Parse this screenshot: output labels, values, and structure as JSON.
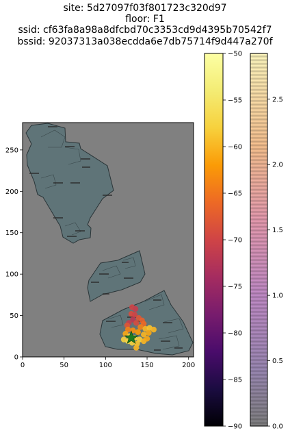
{
  "title": {
    "site": "site: 5d27097f03f801723c320d97",
    "floor": "floor: F1",
    "ssid": "ssid: cf63fa8a98a8dfcbd70c3353cd9d4395b70542f7",
    "bssid": "bssid: 92037313a038ecdda6e7db75714f9d447a270f"
  },
  "colors": {
    "map_background": "#808080",
    "building_fill": "#5f7478",
    "building_edge": "#2a3538",
    "waypoint_marker": "#1f7a1f"
  },
  "chart_data": [
    {
      "type": "scatter",
      "description_role": "main floor map with RSSI scatter overlaid on a density heatmap",
      "xlim": [
        0,
        206
      ],
      "ylim": [
        0,
        283
      ],
      "x_ticks": [
        "0",
        "50",
        "100",
        "150",
        "200"
      ],
      "y_ticks": [
        "0",
        "50",
        "100",
        "150",
        "200",
        "250"
      ],
      "grid": false,
      "points": [
        {
          "x": 132,
          "y": 60,
          "rssi": -70
        },
        {
          "x": 136,
          "y": 58,
          "rssi": -71
        },
        {
          "x": 131,
          "y": 52,
          "rssi": -69
        },
        {
          "x": 135,
          "y": 51,
          "rssi": -70
        },
        {
          "x": 140,
          "y": 47,
          "rssi": -68
        },
        {
          "x": 144,
          "y": 44,
          "rssi": -67
        },
        {
          "x": 146,
          "y": 40,
          "rssi": -66
        },
        {
          "x": 133,
          "y": 45,
          "rssi": -72
        },
        {
          "x": 128,
          "y": 41,
          "rssi": -71
        },
        {
          "x": 126,
          "y": 38,
          "rssi": -68
        },
        {
          "x": 137,
          "y": 41,
          "rssi": -69
        },
        {
          "x": 142,
          "y": 36,
          "rssi": -64
        },
        {
          "x": 148,
          "y": 34,
          "rssi": -60
        },
        {
          "x": 153,
          "y": 35,
          "rssi": -59
        },
        {
          "x": 158,
          "y": 33,
          "rssi": -60
        },
        {
          "x": 152,
          "y": 29,
          "rssi": -61
        },
        {
          "x": 146,
          "y": 27,
          "rssi": -60
        },
        {
          "x": 139,
          "y": 30,
          "rssi": -62
        },
        {
          "x": 133,
          "y": 32,
          "rssi": -63
        },
        {
          "x": 127,
          "y": 33,
          "rssi": -64
        },
        {
          "x": 124,
          "y": 28,
          "rssi": -61
        },
        {
          "x": 129,
          "y": 25,
          "rssi": -58
        },
        {
          "x": 135,
          "y": 23,
          "rssi": -57
        },
        {
          "x": 141,
          "y": 21,
          "rssi": -58
        },
        {
          "x": 146,
          "y": 19,
          "rssi": -60
        },
        {
          "x": 150,
          "y": 22,
          "rssi": -61
        },
        {
          "x": 138,
          "y": 16,
          "rssi": -59
        },
        {
          "x": 132,
          "y": 17,
          "rssi": -58
        },
        {
          "x": 127,
          "y": 19,
          "rssi": -57
        },
        {
          "x": 122,
          "y": 21,
          "rssi": -58
        },
        {
          "x": 137,
          "y": 11,
          "rssi": -60
        }
      ],
      "waypoint": {
        "x": 131,
        "y": 23
      },
      "density_center": {
        "x": 133,
        "y": 24
      }
    },
    {
      "type": "heatmap",
      "description_role": "colorbar for RSSI (inferno colormap)",
      "range": [
        -90,
        -50
      ],
      "ticks": [
        "−90",
        "−85",
        "−80",
        "−75",
        "−70",
        "−65",
        "−60",
        "−55",
        "−50"
      ],
      "tick_values": [
        -90,
        -85,
        -80,
        -75,
        -70,
        -65,
        -60,
        -55,
        -50
      ]
    },
    {
      "type": "heatmap",
      "description_role": "colorbar for density (magma-like, semi-transparent)",
      "range": [
        0,
        2.85
      ],
      "ticks": [
        "0.0",
        "0.5",
        "1.0",
        "1.5",
        "2.0",
        "2.5"
      ],
      "tick_values": [
        0,
        0.5,
        1.0,
        1.5,
        2.0,
        2.5
      ]
    }
  ]
}
